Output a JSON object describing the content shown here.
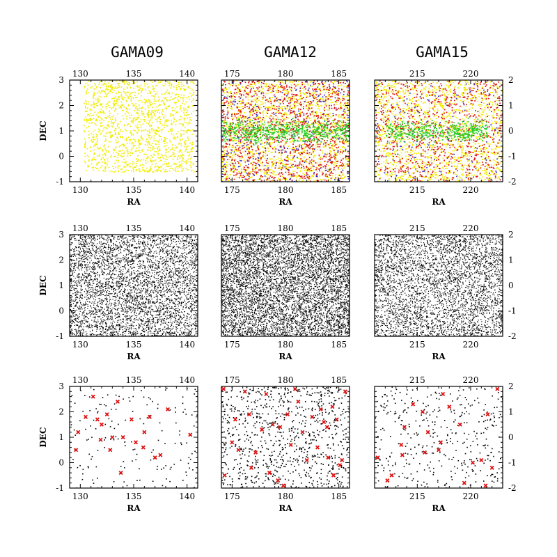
{
  "figure": {
    "columns": [
      "GAMA09",
      "GAMA12",
      "GAMA15"
    ]
  },
  "colors": {
    "yellow": "#f2ec00",
    "red": "#dd1111",
    "green": "#22cc22",
    "blue": "#3333cc",
    "black": "#000000"
  },
  "chart_data": [
    {
      "type": "scatter",
      "panel": "row1-GAMA09",
      "title": "GAMA09",
      "xlabel": "RA",
      "ylabel": "DEC",
      "xlim": [
        129,
        141
      ],
      "ylim": [
        -1,
        3
      ],
      "xticks": [
        130,
        135,
        140
      ],
      "yticks": [
        -1,
        0,
        1,
        2,
        3
      ],
      "series": [
        {
          "color": "yellow",
          "n_points": 1500,
          "ra_range": [
            130.3,
            140.6
          ],
          "dec_range": [
            -0.6,
            3.0
          ]
        }
      ]
    },
    {
      "type": "scatter",
      "panel": "row1-GAMA12",
      "title": "GAMA12",
      "xlabel": "RA",
      "ylabel": "DEC",
      "xlim": [
        174,
        186
      ],
      "ylim": [
        -2,
        2
      ],
      "xticks": [
        175,
        180,
        185
      ],
      "yticks": [
        -2,
        -1,
        0,
        1,
        2
      ],
      "series": [
        {
          "color": "yellow",
          "n_points": 1700,
          "ra_range": [
            174,
            186
          ],
          "dec_range": [
            -2,
            2
          ]
        },
        {
          "color": "red",
          "n_points": 1300,
          "ra_range": [
            174,
            186
          ],
          "dec_range": [
            -2,
            2
          ]
        },
        {
          "color": "blue",
          "n_points": 250,
          "ra_range": [
            174,
            186
          ],
          "dec_range": [
            -2,
            2
          ]
        },
        {
          "color": "green",
          "n_points": 650,
          "ra_range": [
            174,
            186
          ],
          "dec_range": [
            -0.3,
            0.3
          ]
        }
      ]
    },
    {
      "type": "scatter",
      "panel": "row1-GAMA15",
      "title": "GAMA15",
      "xlabel": "RA",
      "ylabel": "DEC",
      "xlim": [
        211,
        223
      ],
      "ylim": [
        -2,
        2
      ],
      "xticks": [
        215,
        220
      ],
      "yticks": [
        -2,
        -1,
        0,
        1,
        2
      ],
      "series": [
        {
          "color": "yellow",
          "n_points": 1600,
          "ra_range": [
            211,
            223
          ],
          "dec_range": [
            -2,
            2
          ]
        },
        {
          "color": "red",
          "n_points": 850,
          "ra_range": [
            211,
            223
          ],
          "dec_range": [
            -2,
            2
          ]
        },
        {
          "color": "blue",
          "n_points": 120,
          "ra_range": [
            211,
            223
          ],
          "dec_range": [
            -2,
            2
          ]
        },
        {
          "color": "green",
          "n_points": 450,
          "ra_range": [
            212,
            221.5
          ],
          "dec_range": [
            -0.3,
            0.3
          ]
        }
      ]
    },
    {
      "type": "scatter",
      "panel": "row2-GAMA09",
      "xlabel": "RA",
      "ylabel": "DEC",
      "xlim": [
        129,
        141
      ],
      "ylim": [
        -1,
        3
      ],
      "xticks": [
        130,
        135,
        140
      ],
      "yticks": [
        -1,
        0,
        1,
        2,
        3
      ],
      "series": [
        {
          "color": "black",
          "n_points": 4500,
          "ra_range": [
            129,
            141
          ],
          "dec_range": [
            -1,
            3
          ]
        }
      ]
    },
    {
      "type": "scatter",
      "panel": "row2-GAMA12",
      "xlabel": "RA",
      "ylabel": "DEC",
      "xlim": [
        174,
        186
      ],
      "ylim": [
        -2,
        2
      ],
      "xticks": [
        175,
        180,
        185
      ],
      "yticks": [
        -2,
        -1,
        0,
        1,
        2
      ],
      "series": [
        {
          "color": "black",
          "n_points": 6500,
          "ra_range": [
            174,
            186
          ],
          "dec_range": [
            -2,
            2
          ]
        }
      ]
    },
    {
      "type": "scatter",
      "panel": "row2-GAMA15",
      "xlabel": "RA",
      "ylabel": "DEC",
      "xlim": [
        211,
        223
      ],
      "ylim": [
        -2,
        2
      ],
      "xticks": [
        215,
        220
      ],
      "yticks": [
        -2,
        -1,
        0,
        1,
        2
      ],
      "series": [
        {
          "color": "black",
          "n_points": 4000,
          "ra_range": [
            211,
            223
          ],
          "dec_range": [
            -2,
            2
          ]
        }
      ]
    },
    {
      "type": "scatter",
      "panel": "row3-GAMA09",
      "xlabel": "RA",
      "ylabel": "DEC",
      "xlim": [
        129,
        141
      ],
      "ylim": [
        -1,
        3
      ],
      "xticks": [
        130,
        135,
        140
      ],
      "yticks": [
        -1,
        0,
        1,
        2,
        3
      ],
      "series": [
        {
          "color": "black",
          "n_points": 160,
          "ra_range": [
            129,
            141
          ],
          "dec_range": [
            -1,
            3
          ]
        },
        {
          "color": "red",
          "marker": "x",
          "x": [
            129.8,
            130.5,
            131.2,
            131.6,
            132.0,
            132.5,
            133.0,
            133.5,
            134.0,
            134.8,
            135.2,
            136.0,
            136.5,
            137.5,
            140.3,
            131.9,
            132.8,
            129.6,
            135.9,
            138.2,
            133.8,
            137.0
          ],
          "y": [
            1.2,
            1.8,
            2.6,
            1.7,
            1.5,
            1.9,
            1.0,
            2.4,
            1.0,
            1.7,
            0.8,
            1.2,
            1.8,
            0.3,
            1.1,
            0.9,
            0.5,
            0.5,
            0.6,
            2.1,
            -0.4,
            0.2
          ]
        }
      ]
    },
    {
      "type": "scatter",
      "panel": "row3-GAMA12",
      "xlabel": "RA",
      "ylabel": "DEC",
      "xlim": [
        174,
        186
      ],
      "ylim": [
        -2,
        2
      ],
      "xticks": [
        175,
        180,
        185
      ],
      "yticks": [
        -2,
        -1,
        0,
        1,
        2
      ],
      "series": [
        {
          "color": "black",
          "n_points": 850,
          "ra_range": [
            174,
            186
          ],
          "dec_range": [
            -2,
            2
          ]
        },
        {
          "color": "red",
          "marker": "x",
          "x": [
            174.2,
            174.3,
            175.3,
            175.6,
            176.2,
            176.6,
            177.2,
            177.8,
            178.2,
            178.8,
            179.3,
            179.8,
            180.2,
            180.5,
            181.2,
            181.6,
            182.5,
            183.0,
            183.3,
            183.6,
            184.0,
            184.4,
            184.8,
            185.3,
            185.6,
            185.1,
            179.5,
            176.8,
            182.0,
            184.5,
            175.0,
            180.9,
            183.9,
            178.5
          ],
          "y": [
            1.9,
            -1.5,
            0.7,
            -0.5,
            1.8,
            0.9,
            -0.6,
            0.3,
            1.7,
            0.5,
            -1.7,
            -1.9,
            0.9,
            -0.3,
            1.4,
            0.2,
            0.8,
            -0.4,
            1.1,
            0.6,
            -0.8,
            1.2,
            0.7,
            -0.9,
            1.8,
            -1.1,
            0.4,
            -1.2,
            -0.9,
            -1.5,
            -0.2,
            1.9,
            0.4,
            -1.4
          ]
        }
      ]
    },
    {
      "type": "scatter",
      "panel": "row3-GAMA15",
      "xlabel": "RA",
      "ylabel": "DEC",
      "xlim": [
        211,
        223
      ],
      "ylim": [
        -2,
        2
      ],
      "xticks": [
        215,
        220
      ],
      "yticks": [
        -2,
        -1,
        0,
        1,
        2
      ],
      "series": [
        {
          "color": "black",
          "n_points": 380,
          "ra_range": [
            211,
            223
          ],
          "dec_range": [
            -2,
            2
          ]
        },
        {
          "color": "red",
          "marker": "x",
          "x": [
            211.3,
            212.2,
            213.5,
            213.8,
            214.6,
            215.5,
            216.0,
            217.0,
            217.4,
            218.0,
            219.0,
            220.2,
            221.0,
            221.6,
            222.0,
            222.5,
            213.6,
            215.7,
            217.2,
            219.4,
            221.4,
            212.6
          ],
          "y": [
            -0.8,
            -1.7,
            -0.3,
            0.4,
            1.3,
            1.0,
            0.2,
            -0.5,
            1.7,
            1.2,
            0.5,
            -1.0,
            -0.9,
            0.9,
            -1.2,
            1.9,
            -0.7,
            -0.6,
            -0.2,
            -1.8,
            -1.9,
            -1.5
          ]
        }
      ]
    }
  ]
}
